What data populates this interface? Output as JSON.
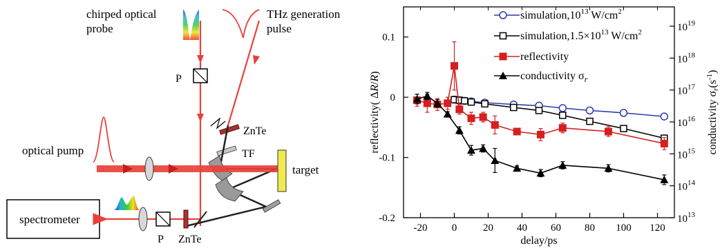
{
  "diagram": {
    "probe_label_1": "chirped optical",
    "probe_label_2": "probe",
    "thz_label_1": "THz generation",
    "thz_label_2": "pulse",
    "polarizer_top": "P",
    "znte_top": "ZnTe",
    "tf_label": "TF",
    "pump_label": "optical pump",
    "target_label": "target",
    "spectrometer_label": "spectrometer",
    "polarizer_bottom": "P",
    "znte_bottom": "ZnTe",
    "colors": {
      "beam": "#e8413a",
      "target": "#f2e94e",
      "thz_beam": "#000000"
    }
  },
  "chart_data": {
    "type": "line",
    "xlabel": "delay/ps",
    "ylabel_left": "reflectivity( ΔR/R)",
    "ylabel_right": "conductivity σr(s-1)",
    "xlim": [
      -30,
      130
    ],
    "ylim": [
      -0.2,
      0.15
    ],
    "x_ticks": [
      "-20",
      "0",
      "20",
      "40",
      "60",
      "80",
      "100",
      "120"
    ],
    "y_ticks": [
      "0.1",
      "0",
      "-0.1",
      "-0.2"
    ],
    "y2_ticks": [
      {
        "base": "10",
        "exp": "19"
      },
      {
        "base": "10",
        "exp": "18"
      },
      {
        "base": "10",
        "exp": "17"
      },
      {
        "base": "10",
        "exp": "16"
      },
      {
        "base": "10",
        "exp": "15"
      },
      {
        "base": "10",
        "exp": "14"
      },
      {
        "base": "10",
        "exp": "13"
      }
    ],
    "legend_position": "top-right",
    "series": [
      {
        "name": "simulation,10^13 W/cm^2",
        "legend_main": "simulation,10",
        "legend_exp": "13",
        "legend_unit": " W/cm",
        "legend_unit_exp": "2",
        "color": "#2b3aa8",
        "marker": "circle-open",
        "x": [
          0,
          3,
          6,
          10,
          18,
          35,
          50,
          64,
          80,
          100,
          124
        ],
        "y": [
          -0.004,
          -0.005,
          -0.006,
          -0.007,
          -0.009,
          -0.012,
          -0.014,
          -0.018,
          -0.022,
          -0.026,
          -0.032
        ]
      },
      {
        "name": "simulation,1.5×10^13 W/cm^2",
        "legend_main": "simulation,1.5×10",
        "legend_exp": "13",
        "legend_unit": " W/cm",
        "legend_unit_exp": "2",
        "color": "#000000",
        "marker": "square-open",
        "x": [
          0,
          3,
          6,
          10,
          18,
          35,
          50,
          64,
          80,
          100,
          124
        ],
        "y": [
          -0.004,
          -0.005,
          -0.006,
          -0.008,
          -0.011,
          -0.017,
          -0.022,
          -0.03,
          -0.04,
          -0.052,
          -0.068
        ]
      },
      {
        "name": "reflectivity",
        "legend_main": "reflectivity",
        "color": "#d42020",
        "marker": "square-filled",
        "x": [
          -22,
          -16,
          -10,
          -4,
          0,
          3,
          10,
          17,
          24,
          37,
          51,
          64,
          91,
          124
        ],
        "y": [
          -0.005,
          -0.01,
          -0.012,
          -0.01,
          0.052,
          -0.02,
          -0.035,
          -0.033,
          -0.046,
          -0.057,
          -0.062,
          -0.051,
          -0.057,
          -0.077
        ],
        "err": [
          0.01,
          0.015,
          0.01,
          0.01,
          0.04,
          0.008,
          0.01,
          0.008,
          0.015,
          0.005,
          0.01,
          0.008,
          0.008,
          0.01
        ]
      },
      {
        "name": "conductivity σr",
        "legend_main": "conductivity σ",
        "legend_sub": "r",
        "color": "#000000",
        "marker": "triangle-filled",
        "x": [
          -22,
          -16,
          -10,
          -4,
          3,
          10,
          17,
          24,
          37,
          51,
          64,
          91,
          124
        ],
        "y": [
          -0.003,
          0.002,
          -0.01,
          -0.028,
          -0.055,
          -0.088,
          -0.085,
          -0.105,
          -0.118,
          -0.126,
          -0.113,
          -0.118,
          -0.137
        ],
        "err": [
          0.008,
          0.006,
          0.006,
          0.004,
          0.006,
          0.008,
          0.006,
          0.02,
          0.004,
          0.006,
          0.006,
          0.006,
          0.008
        ]
      }
    ]
  }
}
